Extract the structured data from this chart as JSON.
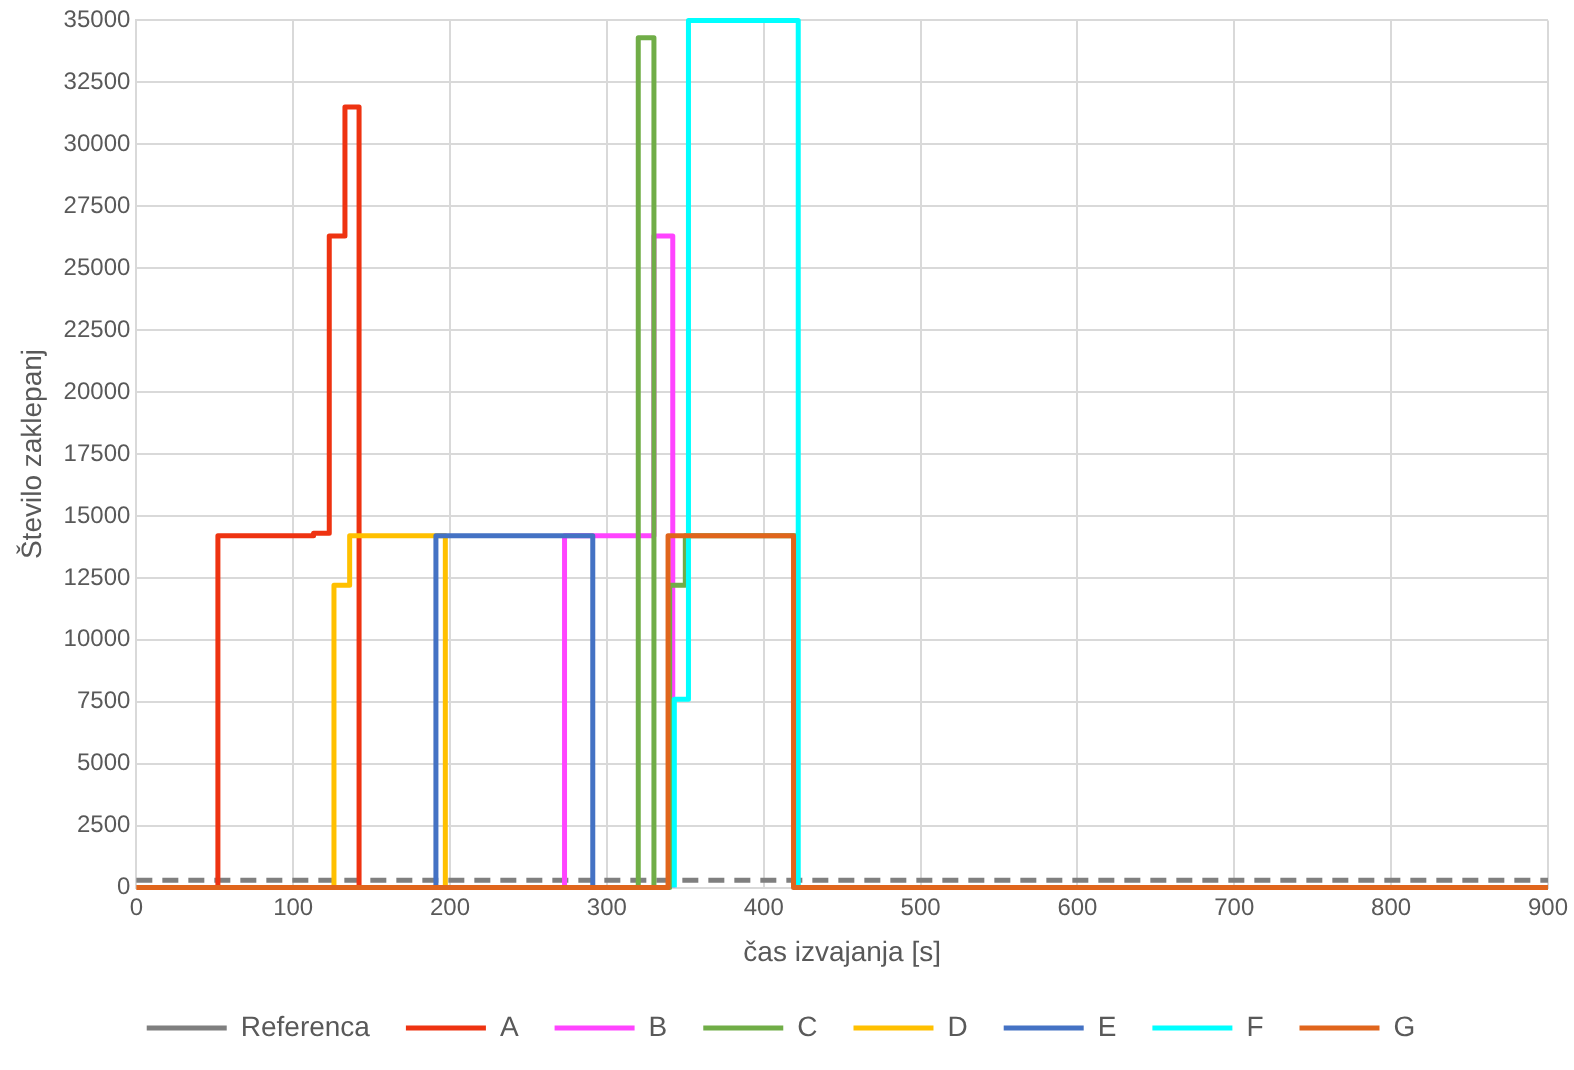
{
  "chart_data": {
    "type": "step",
    "xlabel": "čas izvajanja [s]",
    "ylabel": "Število zaklepanj",
    "xlim": [
      0,
      900
    ],
    "xticks": [
      0,
      100,
      200,
      300,
      400,
      500,
      600,
      700,
      800,
      900
    ],
    "ylim": [
      0,
      35000
    ],
    "yticks": [
      0,
      2500,
      5000,
      7500,
      10000,
      12500,
      15000,
      17500,
      20000,
      22500,
      25000,
      27500,
      30000,
      32500,
      35000
    ],
    "grid": true,
    "legend": "bottom",
    "marker": "none",
    "series": [
      {
        "name": "Referenca",
        "type": "line",
        "line_style": "dashed",
        "color": "#7f7f7f",
        "x": [
          0,
          900
        ],
        "values": [
          300,
          300
        ]
      },
      {
        "name": "A",
        "color": "#ee3311",
        "x": [
          52,
          52,
          113,
          123,
          133,
          142
        ],
        "values": [
          0,
          14200,
          14300,
          26300,
          31500,
          0
        ]
      },
      {
        "name": "B",
        "color": "#ff44ff",
        "x": [
          273,
          273,
          330,
          342
        ],
        "values": [
          0,
          14200,
          26300,
          0
        ]
      },
      {
        "name": "C",
        "color": "#70ad47",
        "x": [
          320,
          320,
          330,
          340,
          350,
          421
        ],
        "values": [
          0,
          34300,
          0,
          12200,
          14200,
          0
        ]
      },
      {
        "name": "D",
        "color": "#ffc000",
        "x": [
          126,
          126,
          136,
          197
        ],
        "values": [
          0,
          12200,
          14200,
          0
        ]
      },
      {
        "name": "E",
        "color": "#4472c4",
        "x": [
          191,
          191,
          291
        ],
        "values": [
          0,
          14200,
          0
        ]
      },
      {
        "name": "F",
        "color": "#00ffff",
        "x": [
          343,
          343,
          352,
          422
        ],
        "values": [
          0,
          7600,
          35000,
          0
        ]
      },
      {
        "name": "G",
        "color": "#e0651c",
        "x": [
          0,
          339,
          419,
          900
        ],
        "values": [
          0,
          14200,
          0,
          0
        ]
      }
    ]
  }
}
